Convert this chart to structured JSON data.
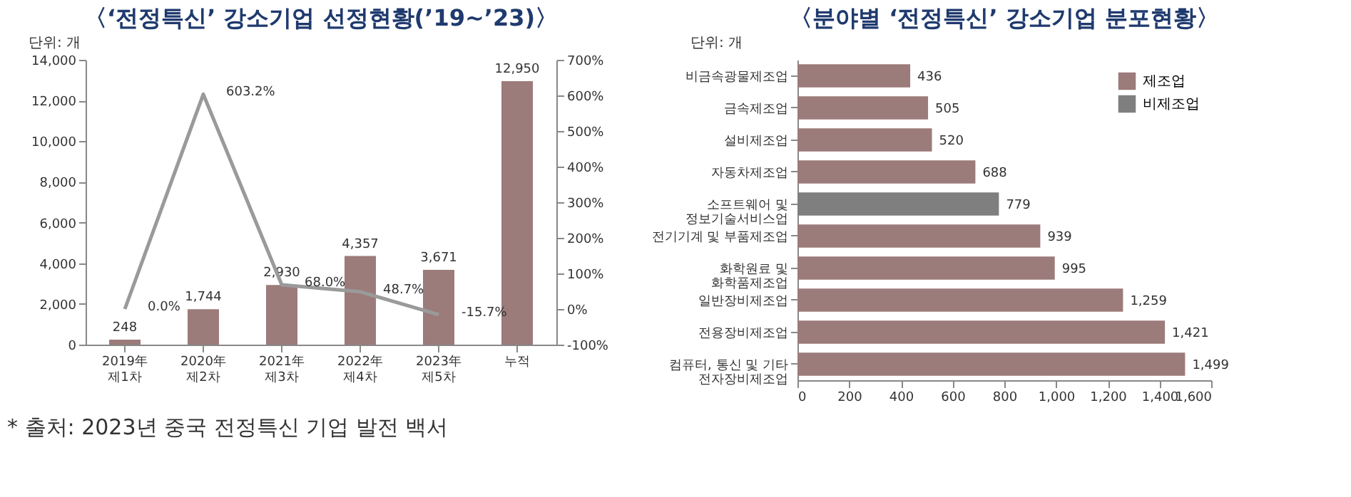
{
  "chart_data": [
    {
      "type": "bar",
      "title": "〈‘전정특신’ 강소기업 선정현황(’19~’23)〉",
      "categories": [
        "2019年\n제1차",
        "2020年\n제2차",
        "2021年\n제3차",
        "2022年\n제4차",
        "2023年\n제5차",
        "누적"
      ],
      "series": [
        {
          "color": "#9c7b7b",
          "values": [
            248,
            1744,
            2930,
            4357,
            3671,
            12950
          ],
          "value_labels": [
            "248",
            "1,744",
            "2,930",
            "4,357",
            "3,671",
            "12,950"
          ]
        },
        {
          "type": "line",
          "axis": "y2",
          "color": "#9a9a9a",
          "values": [
            0.0,
            603.2,
            68.0,
            48.7,
            -15.7,
            null
          ],
          "value_labels": [
            "0.0%",
            "603.2%",
            "68.0%",
            "48.7%",
            "-15.7%",
            null
          ]
        }
      ],
      "marker": "none",
      "grid": false,
      "legend": false,
      "ylim": [
        0,
        14000
      ],
      "yticks": [
        0,
        {
          "value": 2000,
          "label": "2,000"
        },
        {
          "value": 4000,
          "label": "4,000"
        },
        {
          "value": 6000,
          "label": "6,000"
        },
        {
          "value": 8000,
          "label": "8,000"
        },
        {
          "value": 10000,
          "label": "10,000"
        },
        {
          "value": 12000,
          "label": "12,000"
        },
        {
          "value": 14000,
          "label": "14,000"
        }
      ],
      "y2lim": [
        -100,
        700
      ],
      "y2ticks": [
        {
          "value": -100,
          "label": "-100%"
        },
        {
          "value": 0,
          "label": "0%"
        },
        {
          "value": 100,
          "label": "100%"
        },
        {
          "value": 200,
          "label": "200%"
        },
        {
          "value": 300,
          "label": "300%"
        },
        {
          "value": 400,
          "label": "400%"
        },
        {
          "value": 500,
          "label": "500%"
        },
        {
          "value": 600,
          "label": "600%"
        },
        {
          "value": 700,
          "label": "700%"
        }
      ],
      "annotations": [
        "단위: 개",
        "* 출처: 2023년 중국 전정특신 기업 발전 백서"
      ]
    },
    {
      "type": "bar",
      "orientation": "horizontal",
      "title": "〈분야별 ‘전정특신’ 강소기업 분포현황〉",
      "categories": [
        "비금속광물제조업",
        "금속제조업",
        "설비제조업",
        "자동차제조업",
        "소프트웨어 및\n정보기술서비스업",
        "전기기계 및 부품제조업",
        "화학원료 및\n화학품제조업",
        "일반장비제조업",
        "전용장비제조업",
        "컴퓨터, 통신 및 기타\n전자장비제조업"
      ],
      "series": [
        {
          "name": "제조업",
          "color": "#9c7b7b",
          "values": [
            436,
            505,
            520,
            688,
            null,
            939,
            995,
            1259,
            1421,
            1499
          ],
          "value_labels": [
            "436",
            "505",
            "520",
            "688",
            null,
            "939",
            "995",
            "1,259",
            "1,421",
            "1,499"
          ]
        },
        {
          "name": "비제조업",
          "color": "#7f7f7f",
          "values": [
            null,
            null,
            null,
            null,
            779,
            null,
            null,
            null,
            null,
            null
          ],
          "value_labels": [
            null,
            null,
            null,
            null,
            "779",
            null,
            null,
            null,
            null,
            null
          ]
        }
      ],
      "legend": "top right",
      "grid": false,
      "xlim": [
        0,
        1600
      ],
      "xticks": [
        0,
        200,
        400,
        600,
        800,
        {
          "value": 1000,
          "label": "1,000"
        },
        {
          "value": 1200,
          "label": "1,200"
        },
        {
          "value": 1400,
          "label": "1,400"
        },
        {
          "value": 1600,
          "label": "1,600"
        }
      ],
      "annotations": [
        "단위: 개"
      ]
    }
  ]
}
